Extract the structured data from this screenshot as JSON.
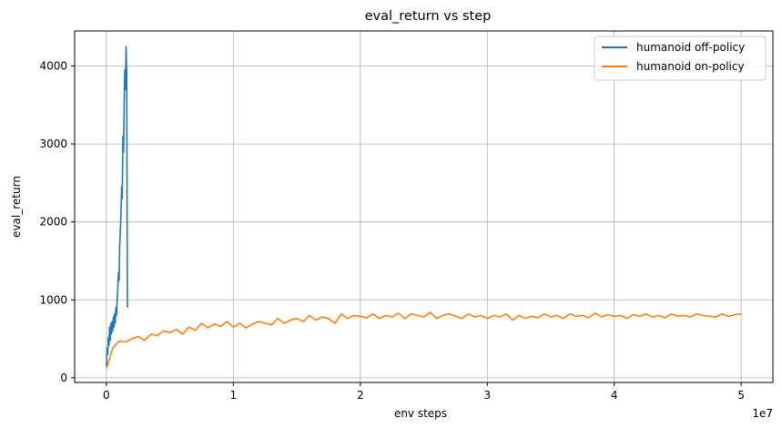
{
  "chart_data": {
    "type": "line",
    "title": "eval_return vs step",
    "xlabel": "env steps",
    "ylabel": "eval_return",
    "x_scale_label": "1e7",
    "xlim": [
      -2500000,
      52500000
    ],
    "ylim": [
      -60,
      4450
    ],
    "x_ticks": [
      0,
      10000000,
      20000000,
      30000000,
      40000000,
      50000000
    ],
    "x_tick_labels": [
      "0",
      "1",
      "2",
      "3",
      "4",
      "5"
    ],
    "y_ticks": [
      0,
      1000,
      2000,
      3000,
      4000
    ],
    "y_tick_labels": [
      "0",
      "1000",
      "2000",
      "3000",
      "4000"
    ],
    "grid": true,
    "legend_position": "top-right",
    "series": [
      {
        "name": "humanoid off-policy",
        "color": "#1f77b4",
        "x": [
          0,
          50000,
          100000,
          150000,
          200000,
          250000,
          300000,
          350000,
          400000,
          450000,
          500000,
          550000,
          600000,
          650000,
          700000,
          750000,
          800000,
          850000,
          900000,
          950000,
          1000000,
          1050000,
          1100000,
          1150000,
          1200000,
          1250000,
          1300000,
          1350000,
          1400000,
          1450000,
          1500000,
          1550000,
          1600000,
          1650000
        ],
        "y": [
          150,
          380,
          300,
          520,
          420,
          650,
          480,
          700,
          560,
          720,
          600,
          780,
          650,
          820,
          700,
          900,
          800,
          1000,
          1150,
          1350,
          1250,
          1700,
          1900,
          2100,
          2450,
          2300,
          3100,
          2900,
          3500,
          3950,
          3700,
          4250,
          3900,
          900
        ]
      },
      {
        "name": "humanoid on-policy",
        "color": "#ff7f0e",
        "x": [
          0,
          500000,
          1000000,
          1500000,
          2000000,
          2500000,
          3000000,
          3500000,
          4000000,
          4500000,
          5000000,
          5500000,
          6000000,
          6500000,
          7000000,
          7500000,
          8000000,
          8500000,
          9000000,
          9500000,
          10000000,
          10500000,
          11000000,
          11500000,
          12000000,
          12500000,
          13000000,
          13500000,
          14000000,
          14500000,
          15000000,
          15500000,
          16000000,
          16500000,
          17000000,
          17500000,
          18000000,
          18500000,
          19000000,
          19500000,
          20000000,
          20500000,
          21000000,
          21500000,
          22000000,
          22500000,
          23000000,
          23500000,
          24000000,
          24500000,
          25000000,
          25500000,
          26000000,
          26500000,
          27000000,
          27500000,
          28000000,
          28500000,
          29000000,
          29500000,
          30000000,
          30500000,
          31000000,
          31500000,
          32000000,
          32500000,
          33000000,
          33500000,
          34000000,
          34500000,
          35000000,
          35500000,
          36000000,
          36500000,
          37000000,
          37500000,
          38000000,
          38500000,
          39000000,
          39500000,
          40000000,
          40500000,
          41000000,
          41500000,
          42000000,
          42500000,
          43000000,
          43500000,
          44000000,
          44500000,
          45000000,
          45500000,
          46000000,
          46500000,
          47000000,
          47500000,
          48000000,
          48500000,
          49000000,
          49500000,
          50000000
        ],
        "y": [
          120,
          380,
          470,
          460,
          500,
          530,
          480,
          560,
          540,
          600,
          580,
          620,
          560,
          650,
          610,
          700,
          640,
          690,
          660,
          720,
          650,
          700,
          640,
          690,
          720,
          700,
          680,
          760,
          700,
          740,
          760,
          720,
          800,
          740,
          780,
          760,
          700,
          820,
          760,
          800,
          790,
          770,
          820,
          760,
          800,
          780,
          830,
          760,
          820,
          800,
          780,
          840,
          760,
          800,
          820,
          790,
          760,
          820,
          780,
          800,
          760,
          800,
          780,
          820,
          740,
          800,
          760,
          790,
          770,
          820,
          780,
          800,
          760,
          820,
          790,
          800,
          770,
          830,
          780,
          810,
          790,
          800,
          760,
          810,
          790,
          820,
          780,
          800,
          770,
          820,
          790,
          800,
          780,
          820,
          800,
          790,
          780,
          820,
          790,
          810,
          820
        ]
      }
    ]
  }
}
